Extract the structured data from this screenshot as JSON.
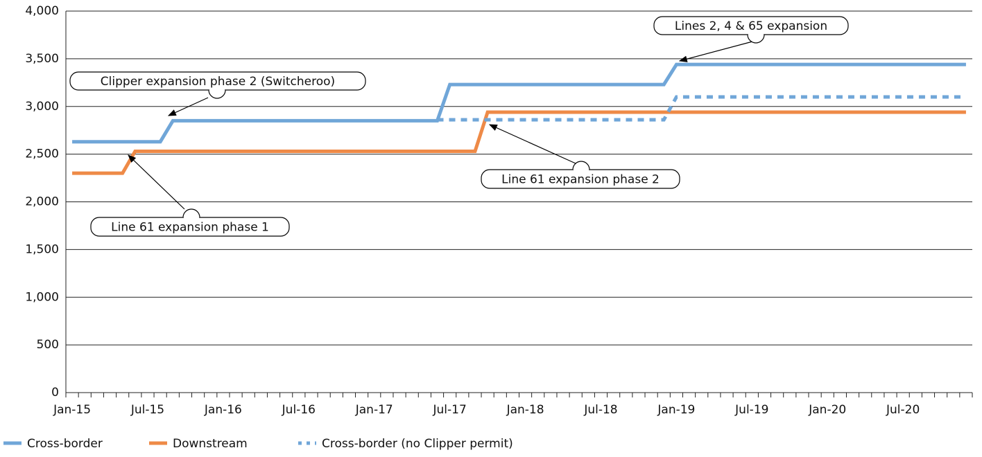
{
  "chart_data": {
    "type": "line",
    "categories": [
      "Jan-15",
      null,
      null,
      null,
      null,
      null,
      "Jul-15",
      null,
      null,
      null,
      null,
      null,
      "Jan-16",
      null,
      null,
      null,
      null,
      null,
      "Jul-16",
      null,
      null,
      null,
      null,
      null,
      "Jan-17",
      null,
      null,
      null,
      null,
      null,
      "Jul-17",
      null,
      null,
      null,
      null,
      null,
      "Jan-18",
      null,
      null,
      null,
      null,
      null,
      "Jul-18",
      null,
      null,
      null,
      null,
      null,
      "Jan-19",
      null,
      null,
      null,
      null,
      null,
      "Jul-19",
      null,
      null,
      null,
      null,
      null,
      "Jan-20",
      null,
      null,
      null,
      null,
      null,
      "Jul-20",
      null,
      null,
      null,
      null,
      null
    ],
    "series": [
      {
        "name": "Cross-border",
        "color": "#70a6d8",
        "dash": false,
        "values": [
          2630,
          2630,
          2630,
          2630,
          2630,
          2630,
          2630,
          2630,
          2850,
          2850,
          2850,
          2850,
          2850,
          2850,
          2850,
          2850,
          2850,
          2850,
          2850,
          2850,
          2850,
          2850,
          2850,
          2850,
          2850,
          2850,
          2850,
          2850,
          2850,
          2850,
          3230,
          3230,
          3230,
          3230,
          3230,
          3230,
          3230,
          3230,
          3230,
          3230,
          3230,
          3230,
          3230,
          3230,
          3230,
          3230,
          3230,
          3230,
          3440,
          3440,
          3440,
          3440,
          3440,
          3440,
          3440,
          3440,
          3440,
          3440,
          3440,
          3440,
          3440,
          3440,
          3440,
          3440,
          3440,
          3440,
          3440,
          3440,
          3440,
          3440,
          3440,
          3440
        ]
      },
      {
        "name": "Downstream",
        "color": "#ee8a47",
        "dash": false,
        "values": [
          2300,
          2300,
          2300,
          2300,
          2300,
          2530,
          2530,
          2530,
          2530,
          2530,
          2530,
          2530,
          2530,
          2530,
          2530,
          2530,
          2530,
          2530,
          2530,
          2530,
          2530,
          2530,
          2530,
          2530,
          2530,
          2530,
          2530,
          2530,
          2530,
          2530,
          2530,
          2530,
          2530,
          2940,
          2940,
          2940,
          2940,
          2940,
          2940,
          2940,
          2940,
          2940,
          2940,
          2940,
          2940,
          2940,
          2940,
          2940,
          2940,
          2940,
          2940,
          2940,
          2940,
          2940,
          2940,
          2940,
          2940,
          2940,
          2940,
          2940,
          2940,
          2940,
          2940,
          2940,
          2940,
          2940,
          2940,
          2940,
          2940,
          2940,
          2940,
          2940
        ]
      },
      {
        "name": "Cross-border (no Clipper permit)",
        "color": "#70a6d8",
        "dash": true,
        "values": [
          null,
          null,
          null,
          null,
          null,
          null,
          null,
          null,
          null,
          null,
          null,
          null,
          null,
          null,
          null,
          null,
          null,
          null,
          null,
          null,
          null,
          null,
          null,
          null,
          null,
          null,
          null,
          null,
          null,
          2860,
          2860,
          2860,
          2860,
          2860,
          2860,
          2860,
          2860,
          2860,
          2860,
          2860,
          2860,
          2860,
          2860,
          2860,
          2860,
          2860,
          2860,
          2860,
          3100,
          3100,
          3100,
          3100,
          3100,
          3100,
          3100,
          3100,
          3100,
          3100,
          3100,
          3100,
          3100,
          3100,
          3100,
          3100,
          3100,
          3100,
          3100,
          3100,
          3100,
          3100,
          3100,
          3100
        ]
      }
    ],
    "ylim": [
      0,
      4000
    ],
    "yticks": [
      0,
      500,
      {
        "value": 1000,
        "label": "1,000"
      },
      {
        "value": 1500,
        "label": "1,500"
      },
      {
        "value": 2000,
        "label": "2,000"
      },
      {
        "value": 2500,
        "label": "2,500"
      },
      {
        "value": 3000,
        "label": "3,000"
      },
      {
        "value": 3500,
        "label": "3,500"
      },
      {
        "value": 4000,
        "label": "4,000"
      }
    ],
    "grid": true,
    "legend": "bottom-left",
    "annotations": [
      "Lines 2, 4 & 65 expansion",
      "Clipper expansion phase 2 (Switcheroo)",
      "Line 61 expansion phase 2",
      "Line 61 expansion phase 1"
    ]
  }
}
